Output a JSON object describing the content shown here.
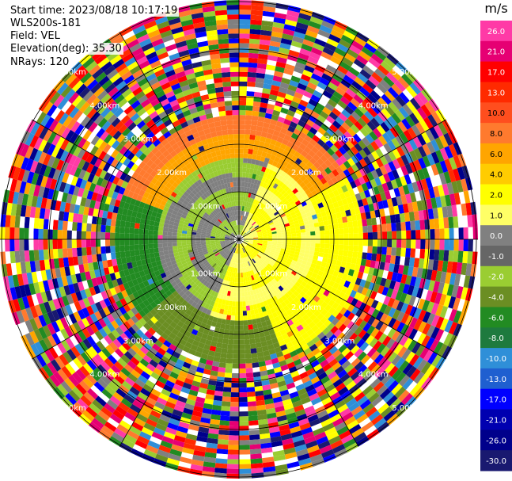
{
  "header": {
    "start_time": "Start time: 2023/08/18 10:17:19",
    "instrument": "WLS200s-181",
    "field": "Field: VEL",
    "elevation": "Elevation(deg): 35.30",
    "nrays": "NRays: 120"
  },
  "chart_data": {
    "type": "heatmap",
    "projection": "polar",
    "field": "VEL",
    "unit": "m/s",
    "nrays": 120,
    "elevation_deg": 35.3,
    "range_rings_km": [
      "1.00km",
      "2.00km",
      "3.00km",
      "4.00km",
      "5.00km"
    ],
    "colorbar": {
      "unit": "m/s",
      "ticks": [
        "26.0",
        "21.0",
        "17.0",
        "13.0",
        "10.0",
        "8.0",
        "6.0",
        "4.0",
        "2.0",
        "1.0",
        "0.0",
        "-1.0",
        "-2.0",
        "-4.0",
        "-6.0",
        "-8.0",
        "-10.0",
        "-13.0",
        "-17.0",
        "-21.0",
        "-26.0",
        "-30.0"
      ],
      "colors": [
        "#ff3aa6",
        "#e60073",
        "#ff0000",
        "#ff2a00",
        "#ff4e1e",
        "#ff7a2e",
        "#ffa500",
        "#ffcc00",
        "#ffff00",
        "#ffff66",
        "#808080",
        "#666666",
        "#9acd32",
        "#6b8e23",
        "#228b22",
        "#1e7a3e",
        "#2f8fd8",
        "#1f5fd0",
        "#0000ff",
        "#0000b0",
        "#00008b",
        "#191970"
      ]
    }
  }
}
